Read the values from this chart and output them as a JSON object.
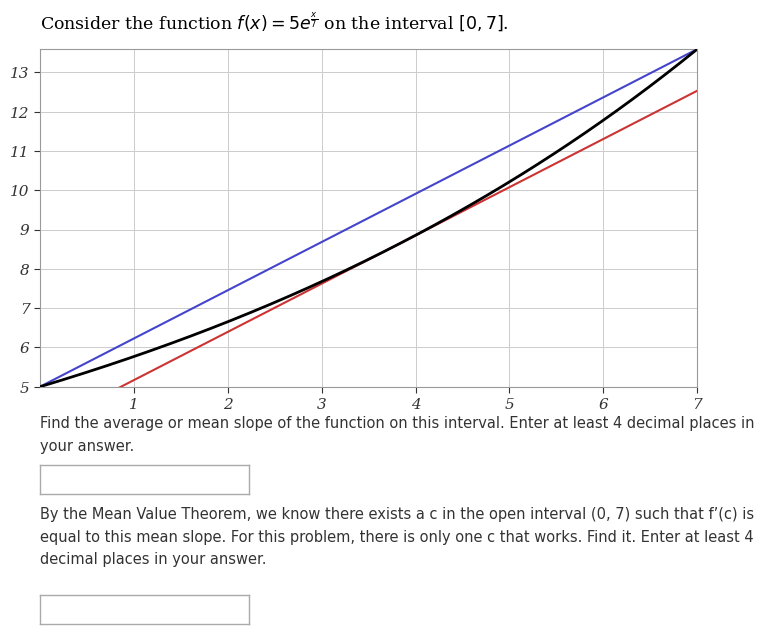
{
  "xlim": [
    0,
    7
  ],
  "ylim": [
    5,
    13.6
  ],
  "xticks": [
    1,
    2,
    3,
    4,
    5,
    6,
    7
  ],
  "yticks": [
    5,
    6,
    7,
    8,
    9,
    10,
    11,
    12,
    13
  ],
  "function_color": "#000000",
  "secant_color": "#4444cc",
  "tangent_color": "#cc3333",
  "bg_color": "#ffffff",
  "grid_color": "#cccccc",
  "text1": "Find the average or mean slope of the function on this interval. Enter at least 4 decimal places in\nyour answer.",
  "text2": "By the Mean Value Theorem, we know there exists a c in the open interval (0, 7) such that f’(c) is\nequal to this mean slope. For this problem, there is only one c that works. Find it. Enter at least 4\ndecimal places in your answer.",
  "f0": 5.0,
  "f7": 13.5914091423,
  "mean_slope": 1.2273441632,
  "c_value": 3.7893395632
}
